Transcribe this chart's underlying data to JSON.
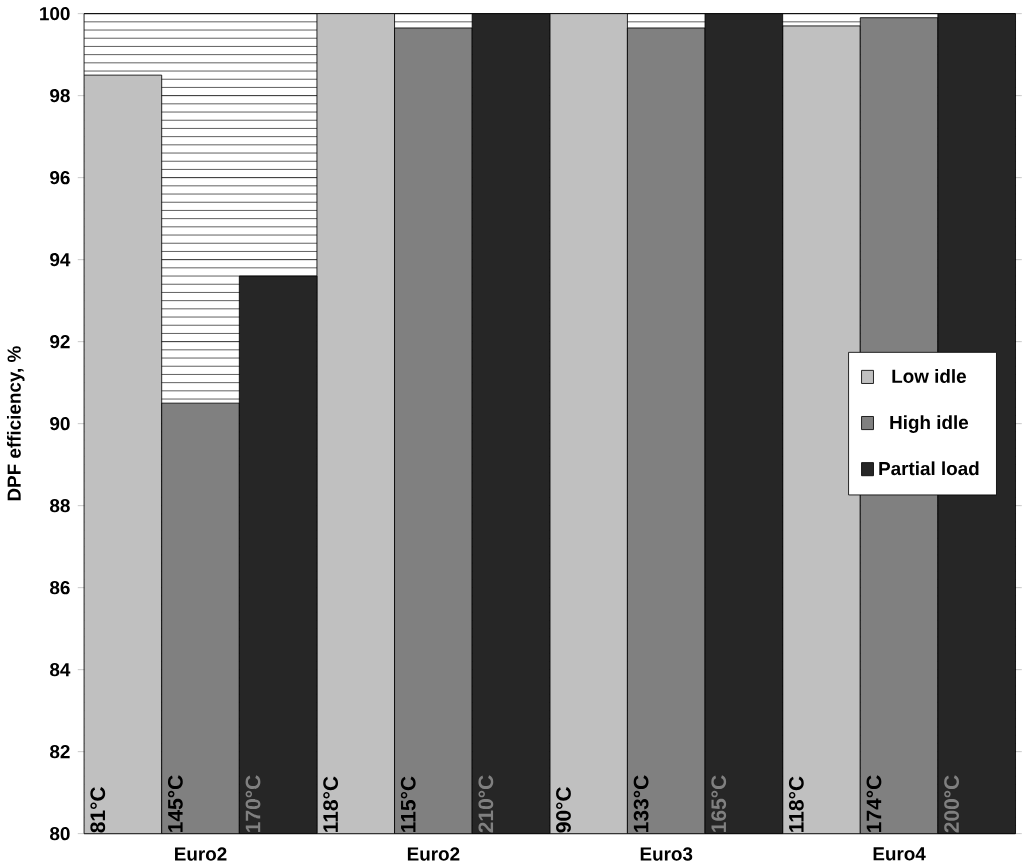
{
  "chart_data": {
    "type": "bar",
    "ylabel": "DPF efficiency, %",
    "categories": [
      "Euro2",
      "Euro2",
      "Euro3",
      "Euro4"
    ],
    "series": [
      {
        "name": "Low idle",
        "color": "#c0c0c0",
        "values": [
          98.5,
          100,
          100,
          99.7
        ]
      },
      {
        "name": "High idle",
        "color": "#808080",
        "values": [
          90.5,
          99.65,
          99.65,
          99.9
        ]
      },
      {
        "name": "Partial load",
        "color": "#262626",
        "values": [
          93.6,
          100,
          100,
          100
        ]
      }
    ],
    "annotations": [
      "81°C",
      "145°C",
      "170°C",
      "118°C",
      "115°C",
      "210°C",
      "90°C",
      "133°C",
      "165°C",
      "118°C",
      "174°C",
      "200°C"
    ],
    "ylim": [
      80,
      100
    ],
    "yticks": [
      80,
      82,
      84,
      86,
      88,
      90,
      92,
      94,
      96,
      98,
      100
    ],
    "grid": "y",
    "legend": "right"
  }
}
